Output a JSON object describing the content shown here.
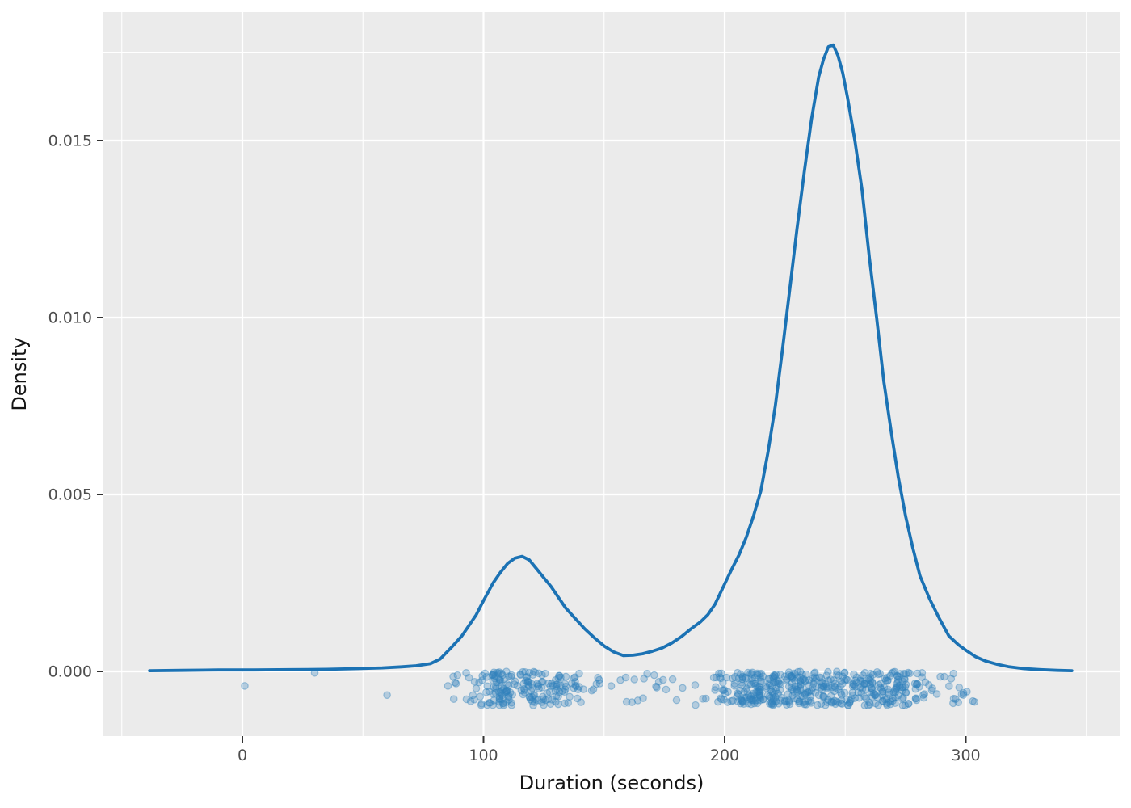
{
  "chart_data": {
    "type": "density",
    "title": "",
    "xlabel": "Duration (seconds)",
    "ylabel": "Density",
    "x_ticks": [
      0,
      100,
      200,
      300
    ],
    "x_tick_labels": [
      "0",
      "100",
      "200",
      "300"
    ],
    "x_minor_ticks": [
      -50,
      50,
      150,
      250,
      350
    ],
    "y_ticks": [
      0,
      0.005,
      0.01,
      0.015
    ],
    "y_tick_labels": [
      "0.000",
      "0.005",
      "0.010",
      "0.015"
    ],
    "y_minor_ticks": [
      0.0025,
      0.0075,
      0.0125,
      0.0175
    ],
    "xlim": [
      -57.6,
      363.8
    ],
    "ylim": [
      -0.00183,
      0.01863
    ],
    "grid": "on",
    "legend": "none",
    "peaks": [
      {
        "x": 116,
        "density": 0.0033
      },
      {
        "x": 244,
        "density": 0.0177
      }
    ],
    "valley": {
      "x": 158,
      "density": 0.00045
    },
    "curve": [
      [
        -38.5,
        2e-05
      ],
      [
        -25,
        3e-05
      ],
      [
        -10,
        4e-05
      ],
      [
        5,
        4e-05
      ],
      [
        20,
        5e-05
      ],
      [
        35,
        6e-05
      ],
      [
        48,
        8e-05
      ],
      [
        58,
        0.0001
      ],
      [
        66,
        0.00013
      ],
      [
        72,
        0.00016
      ],
      [
        78,
        0.00022
      ],
      [
        82,
        0.00035
      ],
      [
        87,
        0.0007
      ],
      [
        91,
        0.001
      ],
      [
        94,
        0.0013
      ],
      [
        97,
        0.0016
      ],
      [
        100,
        0.002
      ],
      [
        104,
        0.0025
      ],
      [
        107,
        0.0028
      ],
      [
        110,
        0.00305
      ],
      [
        113,
        0.0032
      ],
      [
        116,
        0.00325
      ],
      [
        119,
        0.00315
      ],
      [
        122,
        0.0029
      ],
      [
        125,
        0.00265
      ],
      [
        128,
        0.0024
      ],
      [
        131,
        0.0021
      ],
      [
        134,
        0.0018
      ],
      [
        138,
        0.0015
      ],
      [
        142,
        0.0012
      ],
      [
        146,
        0.00095
      ],
      [
        150,
        0.00072
      ],
      [
        154,
        0.00055
      ],
      [
        158,
        0.00045
      ],
      [
        162,
        0.00046
      ],
      [
        166,
        0.0005
      ],
      [
        170,
        0.00057
      ],
      [
        174,
        0.00066
      ],
      [
        178,
        0.0008
      ],
      [
        182,
        0.00098
      ],
      [
        186,
        0.0012
      ],
      [
        190,
        0.0014
      ],
      [
        193,
        0.0016
      ],
      [
        196,
        0.0019
      ],
      [
        200,
        0.00247
      ],
      [
        203,
        0.0029
      ],
      [
        206,
        0.0033
      ],
      [
        209,
        0.0038
      ],
      [
        212,
        0.0044
      ],
      [
        215,
        0.0051
      ],
      [
        218,
        0.0062
      ],
      [
        221,
        0.0075
      ],
      [
        224,
        0.0091
      ],
      [
        227,
        0.0108
      ],
      [
        230,
        0.0125
      ],
      [
        233,
        0.0141
      ],
      [
        236,
        0.0156
      ],
      [
        239,
        0.0168
      ],
      [
        241,
        0.0173
      ],
      [
        243,
        0.01765
      ],
      [
        245,
        0.0177
      ],
      [
        247,
        0.0174
      ],
      [
        249,
        0.0169
      ],
      [
        251,
        0.0162
      ],
      [
        254,
        0.015
      ],
      [
        257,
        0.0136
      ],
      [
        260,
        0.0117
      ],
      [
        263,
        0.01
      ],
      [
        266,
        0.0082
      ],
      [
        269,
        0.0068
      ],
      [
        272,
        0.0055
      ],
      [
        275,
        0.0044
      ],
      [
        278,
        0.0035
      ],
      [
        281,
        0.0027
      ],
      [
        285,
        0.00205
      ],
      [
        289,
        0.0015
      ],
      [
        293,
        0.001
      ],
      [
        297,
        0.00075
      ],
      [
        300,
        0.0006
      ],
      [
        304,
        0.00042
      ],
      [
        308,
        0.0003
      ],
      [
        313,
        0.0002
      ],
      [
        318,
        0.00013
      ],
      [
        324,
        8e-05
      ],
      [
        331,
        5e-05
      ],
      [
        338,
        3e-05
      ],
      [
        344,
        2e-05
      ]
    ],
    "rug": {
      "outlier_durations": [
        1,
        30,
        60
      ],
      "clusters": [
        {
          "from": 85,
          "to": 99,
          "count": 14
        },
        {
          "from": 98,
          "to": 112,
          "count": 55
        },
        {
          "from": 103,
          "to": 135,
          "count": 75
        },
        {
          "from": 112,
          "to": 142,
          "count": 40
        },
        {
          "from": 135,
          "to": 165,
          "count": 18
        },
        {
          "from": 160,
          "to": 200,
          "count": 22
        },
        {
          "from": 196,
          "to": 215,
          "count": 45
        },
        {
          "from": 205,
          "to": 285,
          "count": 260
        },
        {
          "from": 210,
          "to": 240,
          "count": 60
        },
        {
          "from": 240,
          "to": 275,
          "count": 70
        },
        {
          "from": 282,
          "to": 306,
          "count": 22
        }
      ],
      "jitter_center_density": -0.00048,
      "jitter_halfwidth_density": 0.00048
    },
    "colors": {
      "curve": "#1b72b4",
      "points": "#3182bd",
      "panel_background": "#ebebeb",
      "gridline": "#ffffff",
      "tick_mark": "#333333",
      "tick_label": "#4d4d4d",
      "axis_title": "#141414",
      "margin_background": "#ffffff"
    }
  }
}
